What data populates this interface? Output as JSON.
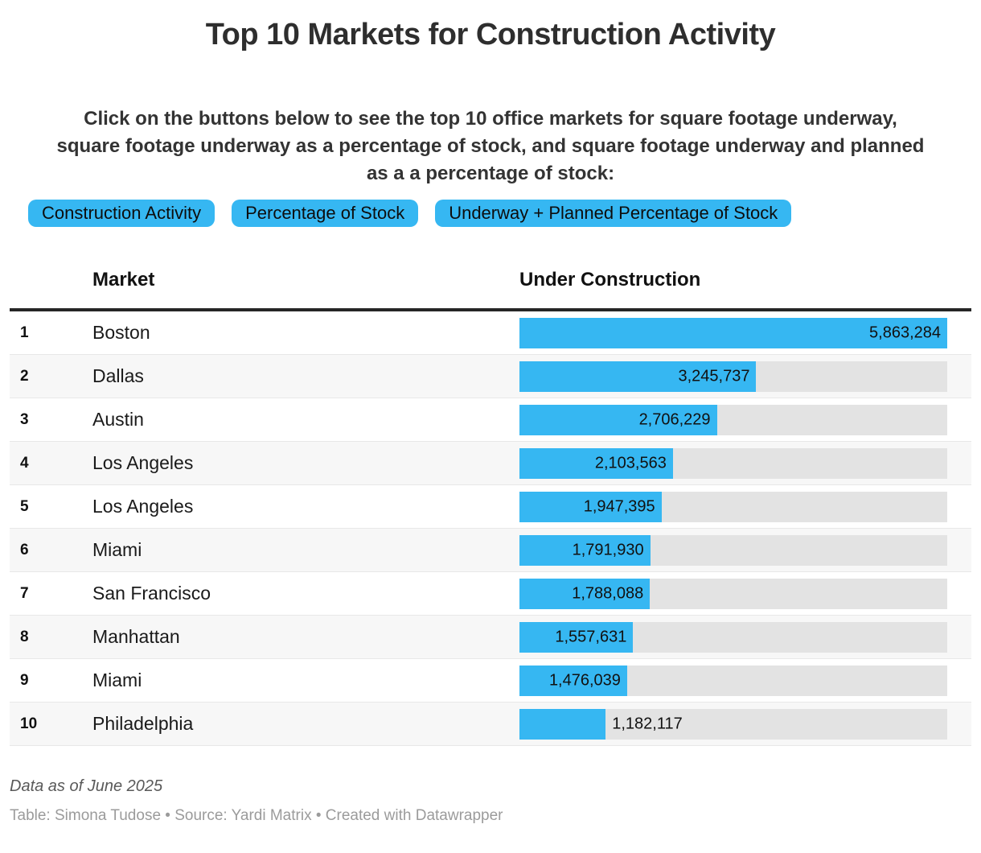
{
  "title": "Top 10 Markets for Construction Activity",
  "intro": {
    "lines": [
      "Click on the buttons below to see the top 10 office markets for square footage underway,",
      "square footage underway as a percentage of stock, and square footage underway and planned",
      "as a a percentage of stock:"
    ]
  },
  "buttons": [
    {
      "label": "Construction Activity"
    },
    {
      "label": "Percentage of Stock"
    },
    {
      "label": "Underway + Planned Percentage of Stock"
    }
  ],
  "colors": {
    "accent": "#36b7f2",
    "bar_track": "#e3e3e3",
    "even_row": "#f7f7f7",
    "header_rule": "#262626"
  },
  "table": {
    "columns": {
      "market": "Market",
      "under_construction": "Under Construction"
    },
    "rows": [
      {
        "rank": "1",
        "market": "Boston",
        "value": 5863284,
        "value_label": "5,863,284"
      },
      {
        "rank": "2",
        "market": "Dallas",
        "value": 3245737,
        "value_label": "3,245,737"
      },
      {
        "rank": "3",
        "market": "Austin",
        "value": 2706229,
        "value_label": "2,706,229"
      },
      {
        "rank": "4",
        "market": "Los Angeles",
        "value": 2103563,
        "value_label": "2,103,563"
      },
      {
        "rank": "5",
        "market": "Los Angeles",
        "value": 1947395,
        "value_label": "1,947,395"
      },
      {
        "rank": "6",
        "market": "Miami",
        "value": 1791930,
        "value_label": "1,791,930"
      },
      {
        "rank": "7",
        "market": "San Francisco",
        "value": 1788088,
        "value_label": "1,788,088"
      },
      {
        "rank": "8",
        "market": "Manhattan",
        "value": 1557631,
        "value_label": "1,557,631"
      },
      {
        "rank": "9",
        "market": "Miami",
        "value": 1476039,
        "value_label": "1,476,039"
      },
      {
        "rank": "10",
        "market": "Philadelphia",
        "value": 1182117,
        "value_label": "1,182,117"
      }
    ]
  },
  "chart_data": {
    "type": "bar",
    "title": "Top 10 Markets for Construction Activity",
    "categories": [
      "Boston",
      "Dallas",
      "Austin",
      "Los Angeles",
      "Los Angeles",
      "Miami",
      "San Francisco",
      "Manhattan",
      "Miami",
      "Philadelphia"
    ],
    "values": [
      5863284,
      3245737,
      2706229,
      2103563,
      1947395,
      1791930,
      1788088,
      1557631,
      1476039,
      1182117
    ],
    "xlabel": "Under Construction",
    "ylabel": "Market",
    "xlim": [
      0,
      5863284
    ],
    "orientation": "horizontal",
    "grid": false,
    "legend_position": "none",
    "data_labels": [
      "5,863,284",
      "3,245,737",
      "2,706,229",
      "2,103,563",
      "1,947,395",
      "1,791,930",
      "1,788,088",
      "1,557,631",
      "1,476,039",
      "1,182,117"
    ]
  },
  "footer": {
    "note": "Data as of June 2025",
    "byline": "Table: Simona Tudose • Source: Yardi Matrix • Created with Datawrapper"
  }
}
